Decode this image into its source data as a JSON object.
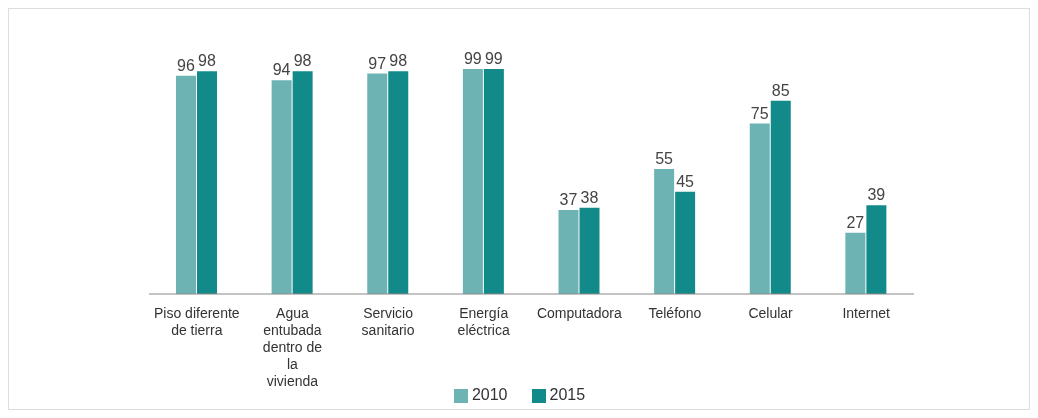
{
  "chart_data": {
    "type": "bar",
    "categories": [
      "Piso diferente de tierra",
      "Agua entubada dentro de la vivienda",
      "Servicio sanitario",
      "Energía eléctrica",
      "Computadora",
      "Teléfono",
      "Celular",
      "Internet"
    ],
    "series": [
      {
        "name": "2010",
        "color": "#6db3b3",
        "values": [
          96,
          94,
          97,
          99,
          37,
          55,
          75,
          27
        ]
      },
      {
        "name": "2015",
        "color": "#138a8a",
        "values": [
          98,
          98,
          98,
          99,
          38,
          45,
          85,
          39
        ]
      }
    ],
    "data_labels": true,
    "legend": "bottom",
    "grid": false
  }
}
